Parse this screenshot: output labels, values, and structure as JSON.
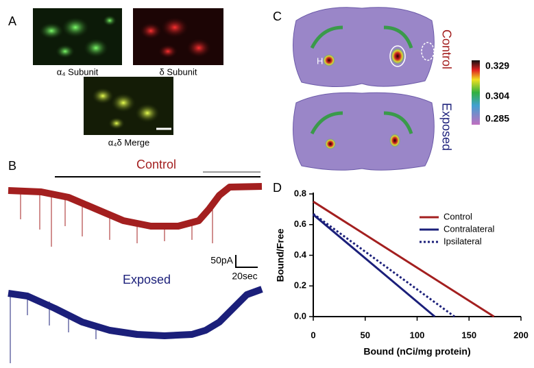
{
  "panel_labels": [
    "A",
    "B",
    "C",
    "D"
  ],
  "panel_a": {
    "images": [
      "α₄ Subunit",
      "δ Subunit",
      "α₄δ Merge"
    ]
  },
  "panel_b": {
    "control": "Control",
    "exposed": "Exposed",
    "scale_current": "50pA",
    "scale_time": "20sec"
  },
  "panel_c": {
    "control": "Control",
    "exposed": "Exposed",
    "region": "H",
    "colorbar_ticks": [
      0.329,
      0.304,
      0.285
    ]
  },
  "chart_data": {
    "type": "line",
    "xlabel": "Bound (nCi/mg protein)",
    "ylabel": "Bound/Free",
    "series": [
      {
        "name": "Control",
        "color": "#a31f1f",
        "linestyle": "solid",
        "x": [
          0,
          174
        ],
        "values": [
          0.75,
          0
        ]
      },
      {
        "name": "Contralateral",
        "color": "#1b1f7a",
        "linestyle": "solid",
        "x": [
          0,
          117
        ],
        "values": [
          0.665,
          0
        ]
      },
      {
        "name": "Ipsilateral",
        "color": "#1b1f7a",
        "linestyle": "dotted",
        "x": [
          0,
          136
        ],
        "values": [
          0.67,
          0
        ]
      }
    ],
    "xlim": [
      0,
      200
    ],
    "xticks": [
      0,
      50,
      100,
      150,
      200
    ],
    "ylim": [
      0,
      0.8
    ],
    "yticks": [
      {
        "value": 0,
        "label": "0.0"
      },
      0.2,
      0.4,
      0.6,
      0.8
    ],
    "legend": "upper right"
  }
}
